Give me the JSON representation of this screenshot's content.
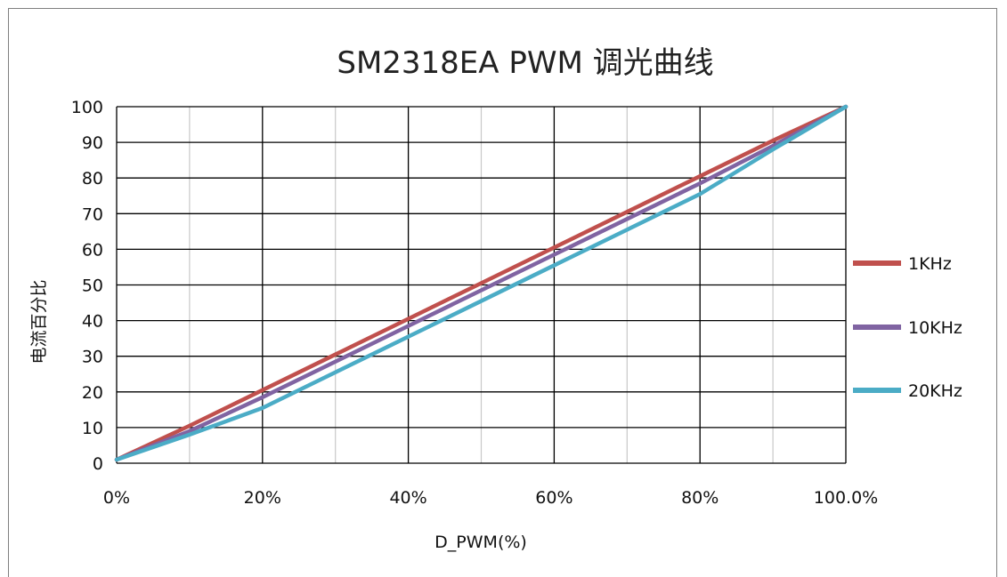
{
  "chart_data": {
    "type": "line",
    "title": "SM2318EA  PWM 调光曲线",
    "xlabel": "D_PWM(%)",
    "ylabel": "电流百分比",
    "xlim": [
      0,
      100
    ],
    "ylim": [
      0,
      100
    ],
    "x_major_ticks": [
      0,
      20,
      40,
      60,
      80,
      100
    ],
    "x_tick_labels": [
      "0%",
      "20%",
      "40%",
      "60%",
      "80%",
      "100.0%"
    ],
    "x_minor_gridlines": [
      10,
      30,
      50,
      70,
      90
    ],
    "y_ticks": [
      0,
      10,
      20,
      30,
      40,
      50,
      60,
      70,
      80,
      90,
      100
    ],
    "grid": true,
    "legend_position": "right",
    "series": [
      {
        "name": "1KHz",
        "color": "#c0504d",
        "x": [
          0,
          10,
          20,
          30,
          40,
          50,
          60,
          70,
          80,
          90,
          100
        ],
        "y": [
          1,
          10.5,
          20.5,
          30.5,
          40.5,
          50.5,
          60.5,
          70.5,
          80.5,
          90.5,
          100
        ]
      },
      {
        "name": "10KHz",
        "color": "#8064a2",
        "x": [
          0,
          10,
          20,
          30,
          40,
          50,
          60,
          70,
          80,
          90,
          100
        ],
        "y": [
          1,
          9,
          18.5,
          28.5,
          38.5,
          48.5,
          58.5,
          68.5,
          78.5,
          89,
          100
        ]
      },
      {
        "name": "20KHz",
        "color": "#4bacc6",
        "x": [
          0,
          10,
          20,
          30,
          40,
          50,
          60,
          70,
          80,
          90,
          100
        ],
        "y": [
          1,
          8,
          15.5,
          25.5,
          35.5,
          45.5,
          55.5,
          65.5,
          75.5,
          88,
          100
        ]
      }
    ]
  }
}
